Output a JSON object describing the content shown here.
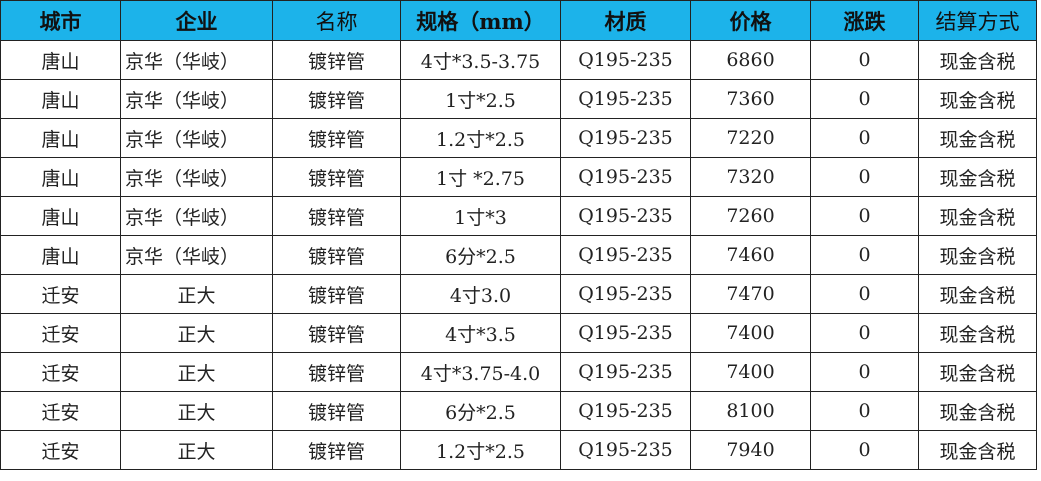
{
  "header_color": "#1cb3ea",
  "columns": [
    "城市",
    "企业",
    "名称",
    "规格（mm）",
    "材质",
    "价格",
    "涨跌",
    "结算方式"
  ],
  "rows": [
    [
      "唐山",
      "京华（华岐）",
      "镀锌管",
      "4寸*3.5-3.75",
      "Q195-235",
      "6860",
      "0",
      "现金含税"
    ],
    [
      "唐山",
      "京华（华岐）",
      "镀锌管",
      "1寸*2.5",
      "Q195-235",
      "7360",
      "0",
      "现金含税"
    ],
    [
      "唐山",
      "京华（华岐）",
      "镀锌管",
      "1.2寸*2.5",
      "Q195-235",
      "7220",
      "0",
      "现金含税"
    ],
    [
      "唐山",
      "京华（华岐）",
      "镀锌管",
      "1寸 *2.75",
      "Q195-235",
      "7320",
      "0",
      "现金含税"
    ],
    [
      "唐山",
      "京华（华岐）",
      "镀锌管",
      "1寸*3",
      "Q195-235",
      "7260",
      "0",
      "现金含税"
    ],
    [
      "唐山",
      "京华（华岐）",
      "镀锌管",
      "6分*2.5",
      "Q195-235",
      "7460",
      "0",
      "现金含税"
    ],
    [
      "迁安",
      "正大",
      "镀锌管",
      "4寸3.0",
      "Q195-235",
      "7470",
      "0",
      "现金含税"
    ],
    [
      "迁安",
      "正大",
      "镀锌管",
      "4寸*3.5",
      "Q195-235",
      "7400",
      "0",
      "现金含税"
    ],
    [
      "迁安",
      "正大",
      "镀锌管",
      "4寸*3.75-4.0",
      "Q195-235",
      "7400",
      "0",
      "现金含税"
    ],
    [
      "迁安",
      "正大",
      "镀锌管",
      "6分*2.5",
      "Q195-235",
      "8100",
      "0",
      "现金含税"
    ],
    [
      "迁安",
      "正大",
      "镀锌管",
      "1.2寸*2.5",
      "Q195-235",
      "7940",
      "0",
      "现金含税"
    ]
  ]
}
